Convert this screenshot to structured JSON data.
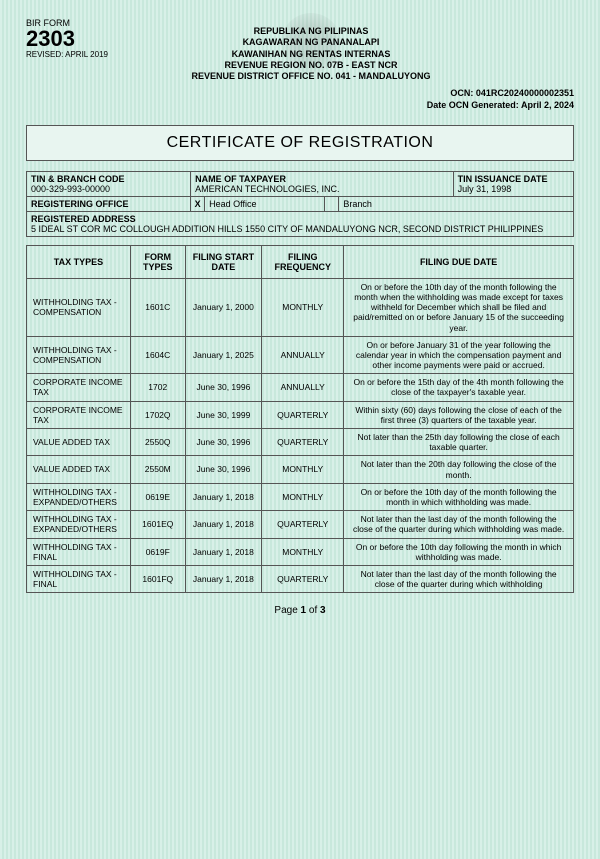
{
  "form": {
    "label": "BIR FORM",
    "number": "2303",
    "revised": "REVISED: APRIL 2019"
  },
  "header": {
    "l1": "REPUBLIKA NG PILIPINAS",
    "l2": "KAGAWARAN NG PANANALAPI",
    "l3": "KAWANIHAN NG RENTAS INTERNAS",
    "l4": "REVENUE REGION NO. 07B - EAST NCR",
    "l5": "REVENUE DISTRICT OFFICE NO. 041 - MANDALUYONG"
  },
  "ocn": {
    "line1": "OCN: 041RC20240000002351",
    "line2": "Date OCN Generated: April 2, 2024"
  },
  "title": "CERTIFICATE OF REGISTRATION",
  "info": {
    "tin_label": "TIN & BRANCH CODE",
    "tin": "000-329-993-00000",
    "name_label": "NAME OF TAXPAYER",
    "name": "AMERICAN TECHNOLOGIES, INC.",
    "iss_label": "TIN ISSUANCE DATE",
    "iss": "July 31, 1998",
    "reg_office_label": "REGISTERING OFFICE",
    "head": "Head Office",
    "branch": "Branch",
    "x": "X",
    "addr_label": "REGISTERED ADDRESS",
    "addr": "5 IDEAL ST COR MC COLLOUGH   ADDITION HILLS 1550 CITY OF MANDALUYONG NCR, SECOND DISTRICT PHILIPPINES"
  },
  "cols": {
    "c1": "TAX TYPES",
    "c2": "FORM TYPES",
    "c3": "FILING START DATE",
    "c4": "FILING FREQUENCY",
    "c5": "FILING DUE DATE"
  },
  "rows": [
    {
      "tt": "WITHHOLDING TAX - COMPENSATION",
      "ft": "1601C",
      "fs": "January 1, 2000",
      "ff": "MONTHLY",
      "dd": "On or before the 10th day of the month following the month when the withholding was made except for taxes withheld for December which shall be filed and paid/remitted on or before January 15 of the succeeding year."
    },
    {
      "tt": "WITHHOLDING TAX - COMPENSATION",
      "ft": "1604C",
      "fs": "January 1, 2025",
      "ff": "ANNUALLY",
      "dd": "On or before January 31 of the year following the calendar year in which the compensation payment and other income payments were paid or accrued."
    },
    {
      "tt": "CORPORATE INCOME TAX",
      "ft": "1702",
      "fs": "June 30, 1996",
      "ff": "ANNUALLY",
      "dd": "On or before the 15th day of the 4th month following the close of the taxpayer's taxable year."
    },
    {
      "tt": "CORPORATE INCOME TAX",
      "ft": "1702Q",
      "fs": "June 30, 1999",
      "ff": "QUARTERLY",
      "dd": "Within sixty (60) days following the close of each of the first three (3) quarters of the taxable year."
    },
    {
      "tt": "VALUE ADDED TAX",
      "ft": "2550Q",
      "fs": "June 30, 1996",
      "ff": "QUARTERLY",
      "dd": "Not later than the 25th day following the close of each taxable quarter."
    },
    {
      "tt": "VALUE ADDED TAX",
      "ft": "2550M",
      "fs": "June 30, 1996",
      "ff": "MONTHLY",
      "dd": "Not later than the 20th day following the close of the month."
    },
    {
      "tt": "WITHHOLDING TAX - EXPANDED/OTHERS",
      "ft": "0619E",
      "fs": "January 1, 2018",
      "ff": "MONTHLY",
      "dd": "On or before the 10th day of the month following the month in which withholding was made."
    },
    {
      "tt": "WITHHOLDING TAX - EXPANDED/OTHERS",
      "ft": "1601EQ",
      "fs": "January 1, 2018",
      "ff": "QUARTERLY",
      "dd": "Not later than the last day of the month following the close of the quarter during which withholding was made."
    },
    {
      "tt": "WITHHOLDING TAX - FINAL",
      "ft": "0619F",
      "fs": "January 1, 2018",
      "ff": "MONTHLY",
      "dd": "On or before the 10th day following the month in which withholding was made."
    },
    {
      "tt": "WITHHOLDING TAX - FINAL",
      "ft": "1601FQ",
      "fs": "January 1, 2018",
      "ff": "QUARTERLY",
      "dd": "Not later than the last day of the month following the close of the quarter during which withholding"
    }
  ],
  "page": "Page 1 of 3"
}
